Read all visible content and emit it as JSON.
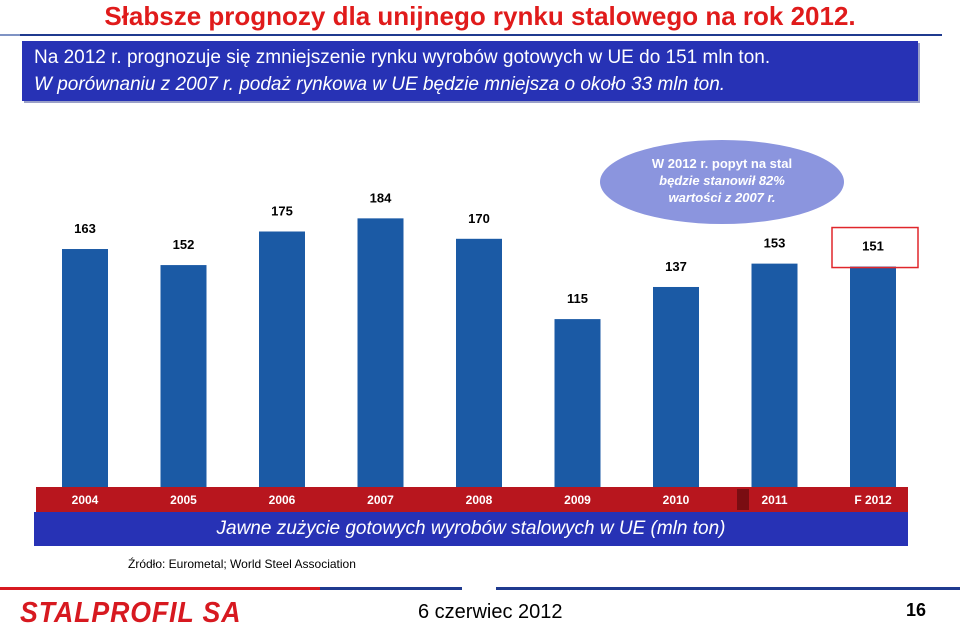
{
  "slide": {
    "title": "Słabsze prognozy dla unijnego rynku stalowego na rok 2012.",
    "info_line_1": "Na 2012 r. prognozuje się zmniejszenie rynku wyrobów gotowych w UE do 151 mln ton.",
    "info_line_2": "W porównaniu z 2007 r. podaż rynkowa w UE będzie mniejsza o około 33 mln ton.",
    "callout_line_1": "W 2012 r. popyt na stal",
    "callout_line_2": "będzie stanowił 82%",
    "callout_line_3": "wartości z 2007 r.",
    "caption": "Jawne zużycie gotowych wyrobów stalowych w UE (mln ton)",
    "source": "Źródło: Eurometal; World Steel Association",
    "logo": "STALPROFIL SA",
    "date": "6 czerwiec 2012",
    "page_number": "16"
  },
  "colors": {
    "title": "#e01b1b",
    "box": "#2732b5",
    "bar": "#1b5aa5",
    "axis_band": "#b8161e",
    "callout": "#8b95de",
    "highlight_border": "#e0262b",
    "logo": "#d71920"
  },
  "chart_data": {
    "type": "bar",
    "categories": [
      "2004",
      "2005",
      "2006",
      "2007",
      "2008",
      "2009",
      "2010",
      "2011",
      "F 2012"
    ],
    "values": [
      163,
      152,
      175,
      184,
      170,
      115,
      137,
      153,
      151
    ],
    "title": "",
    "xlabel": "",
    "ylabel": "",
    "highlighted_category": "F 2012",
    "grid": false,
    "legend": "none"
  }
}
